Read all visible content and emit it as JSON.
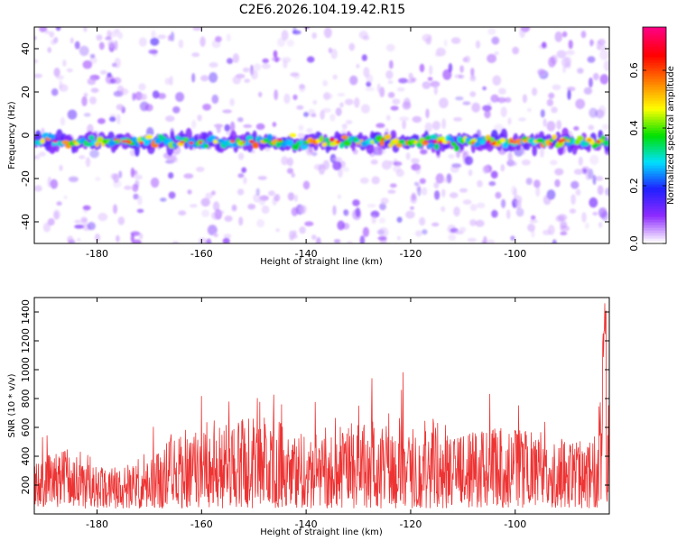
{
  "title": "C2E6.2026.104.19.42.R15",
  "chart_data": [
    {
      "type": "heatmap",
      "name": "spectrogram",
      "xlabel": "Height of straight line (km)",
      "ylabel": "Frequency (Hz)",
      "xlim": [
        -192,
        -82
      ],
      "ylim": [
        -50,
        50
      ],
      "xticks": [
        -180,
        -160,
        -140,
        -120,
        -100
      ],
      "yticks": [
        -40,
        -20,
        0,
        20,
        40
      ],
      "xtick_labels": [
        "-180",
        "-160",
        "-140",
        "-120",
        "-100"
      ],
      "ytick_labels": [
        "-40",
        "-20",
        "0",
        "20",
        "40"
      ],
      "band_center_hz": -3,
      "band_halfwidth_hz": 3,
      "colorbar": {
        "label": "Normalized spectral amplitude",
        "range": [
          0,
          0.75
        ],
        "ticks": [
          0,
          0.2,
          0.4,
          0.6
        ],
        "tick_labels": [
          "0.0",
          "0.2",
          "0.4",
          "0.6"
        ],
        "colors": [
          "#ffffff",
          "#8e2bff",
          "#2020ff",
          "#00e0ff",
          "#00e000",
          "#ffff00",
          "#ff8000",
          "#ff0000",
          "#ff0080"
        ]
      }
    },
    {
      "type": "line",
      "name": "snr",
      "xlabel": "Height of straight line (km)",
      "ylabel": "SNR (10 * v/v)",
      "xlim": [
        -192,
        -82
      ],
      "ylim": [
        0,
        1500
      ],
      "xticks": [
        -180,
        -160,
        -140,
        -120,
        -100
      ],
      "yticks": [
        200,
        400,
        600,
        800,
        1000,
        1200,
        1400
      ],
      "xtick_labels": [
        "-180",
        "-160",
        "-140",
        "-120",
        "-100"
      ],
      "ytick_labels": [
        "200",
        "400",
        "600",
        "800",
        "1000",
        "1200",
        "1400"
      ],
      "line_color": "#ee3333",
      "envelope_x": [
        -192,
        -188,
        -186,
        -184,
        -180,
        -176,
        -172,
        -168,
        -166,
        -164,
        -160,
        -156,
        -150,
        -144,
        -140,
        -136,
        -130,
        -126,
        -123,
        -120,
        -116,
        -114,
        -110,
        -106,
        -102,
        -98,
        -94,
        -90,
        -88,
        -86,
        -84,
        -83,
        -82
      ],
      "envelope_y": [
        300,
        380,
        420,
        320,
        300,
        300,
        360,
        420,
        520,
        560,
        520,
        580,
        640,
        600,
        520,
        540,
        600,
        600,
        700,
        620,
        640,
        560,
        560,
        540,
        560,
        540,
        520,
        480,
        460,
        500,
        600,
        1150,
        700
      ]
    }
  ]
}
